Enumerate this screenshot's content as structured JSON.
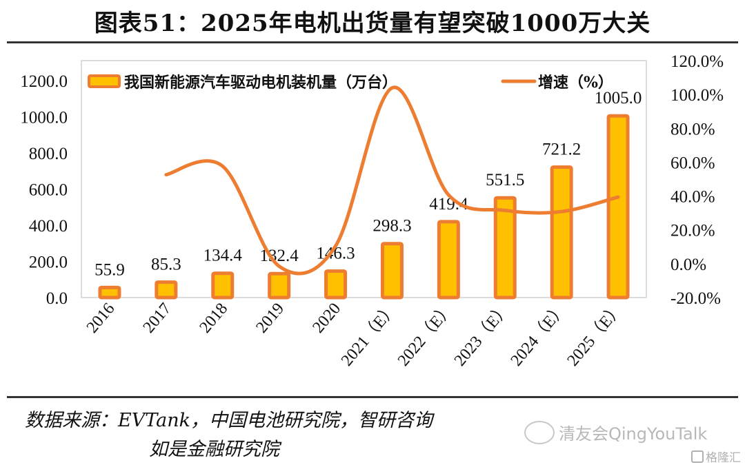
{
  "title": "图表51：2025年电机出货量有望突破1000万大关",
  "chart_data": {
    "type": "bar+line",
    "title": "图表51：2025年电机出货量有望突破1000万大关",
    "categories": [
      "2016",
      "2017",
      "2018",
      "2019",
      "2020",
      "2021（E）",
      "2022（E）",
      "2023（E）",
      "2024（E）",
      "2025（E）"
    ],
    "series": [
      {
        "name": "我国新能源汽车驱动电机装机量（万台）",
        "type": "bar",
        "axis": "left",
        "values": [
          55.9,
          85.3,
          134.4,
          132.4,
          146.3,
          298.3,
          419.4,
          551.5,
          721.2,
          1005.0
        ],
        "labels": [
          "55.9",
          "85.3",
          "134.4",
          "132.4",
          "146.3",
          "298.3",
          "419.4",
          "551.5",
          "721.2",
          "1005.0"
        ],
        "fill": "#FFC000",
        "stroke": "#ED7D31"
      },
      {
        "name": "增速（%）",
        "type": "line",
        "smooth": true,
        "axis": "right",
        "values": [
          null,
          52.6,
          57.6,
          -1.5,
          10.5,
          103.9,
          40.6,
          31.5,
          30.8,
          39.4
        ],
        "color": "#ED7D31"
      }
    ],
    "left_axis": {
      "ylim": [
        0,
        1200
      ],
      "ticks": [
        "0.0",
        "200.0",
        "400.0",
        "600.0",
        "800.0",
        "1000.0",
        "1200.0"
      ],
      "tick_values": [
        0,
        200,
        400,
        600,
        800,
        1000,
        1200
      ]
    },
    "right_axis": {
      "ylim": [
        -20,
        120
      ],
      "ticks": [
        "-20.0%",
        "0.0%",
        "20.0%",
        "40.0%",
        "60.0%",
        "80.0%",
        "100.0%",
        "120.0%"
      ],
      "tick_values": [
        -20,
        0,
        20,
        40,
        60,
        80,
        100,
        120
      ]
    },
    "xlabel": "",
    "ylabel": "",
    "grid": false,
    "legend": {
      "placement": "top",
      "entries": [
        "我国新能源汽车驱动电机装机量（万台）",
        "增速（%）"
      ]
    }
  },
  "source": {
    "line1": "数据来源：EVTank，中国电池研究院，智研咨询",
    "line2": "如是金融研究院"
  },
  "watermarks": {
    "wechat": "清友会QingYouTalk",
    "gelonghui": "格隆汇"
  }
}
